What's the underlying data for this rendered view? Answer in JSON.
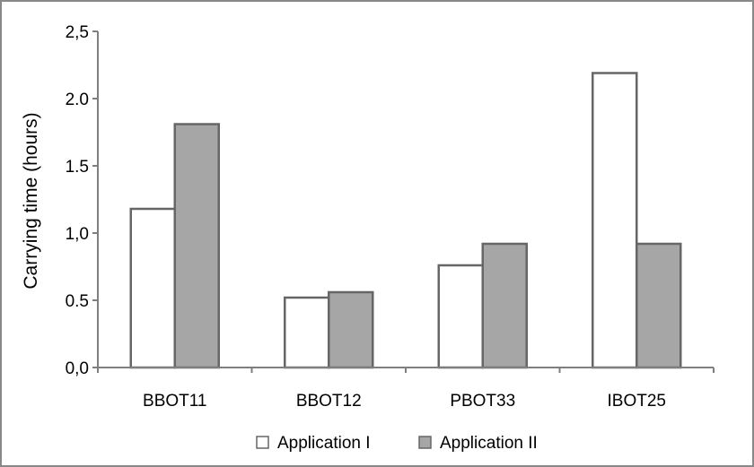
{
  "chart_data": {
    "type": "bar",
    "title": "",
    "xlabel": "",
    "ylabel": "Carrying time (hours)",
    "categories": [
      "BBOT11",
      "BBOT12",
      "PBOT33",
      "IBOT25"
    ],
    "series": [
      {
        "name": "Application I",
        "values": [
          1.18,
          0.52,
          0.76,
          2.19
        ],
        "color": "#ffffff"
      },
      {
        "name": "Application II",
        "values": [
          1.81,
          0.56,
          0.92,
          0.92
        ],
        "color": "#a6a6a6"
      }
    ],
    "ylim": [
      0,
      2.5
    ],
    "yticks": [
      0,
      0.5,
      1.0,
      1.5,
      2.0,
      2.5
    ],
    "ytick_labels": [
      "0,0",
      "0.5",
      "1,0",
      "1.5",
      "2.0",
      "2,5"
    ],
    "grid": false,
    "legend_position": "bottom",
    "bar_outline_color": "#666666",
    "axis_color": "#7f7f7f",
    "frame_color": "#888888"
  }
}
